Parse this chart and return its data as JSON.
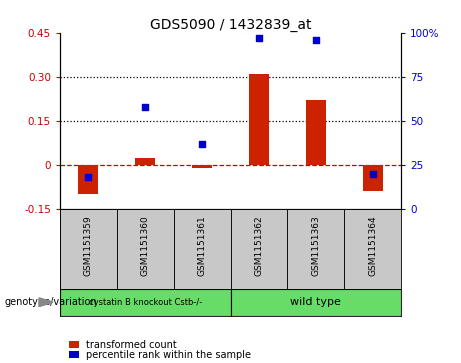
{
  "title": "GDS5090 / 1432839_at",
  "samples": [
    "GSM1151359",
    "GSM1151360",
    "GSM1151361",
    "GSM1151362",
    "GSM1151363",
    "GSM1151364"
  ],
  "transformed_count": [
    -0.1,
    0.022,
    -0.012,
    0.31,
    0.22,
    -0.09
  ],
  "percentile_rank": [
    18,
    58,
    37,
    97,
    96,
    20
  ],
  "bar_color": "#CC2200",
  "dot_color": "#0000CC",
  "ylim_left": [
    -0.15,
    0.45
  ],
  "ylim_right": [
    0,
    100
  ],
  "yticks_left": [
    -0.15,
    0.0,
    0.15,
    0.3,
    0.45
  ],
  "yticks_right": [
    0,
    25,
    50,
    75,
    100
  ],
  "ytick_labels_left": [
    "-0.15",
    "0",
    "0.15",
    "0.30",
    "0.45"
  ],
  "ytick_labels_right": [
    "0",
    "25",
    "50",
    "75",
    "100%"
  ],
  "hlines": [
    0.15,
    0.3
  ],
  "zero_line_color": "#CC0000",
  "hline_color": "#000000",
  "background_color": "#ffffff",
  "legend_transformed": "transformed count",
  "legend_percentile": "percentile rank within the sample",
  "bar_width": 0.35,
  "group1_label": "cystatin B knockout Cstb-/-",
  "group2_label": "wild type",
  "group_color": "#66DD66",
  "sample_bg_color": "#C8C8C8",
  "genotype_label": "genotype/variation"
}
